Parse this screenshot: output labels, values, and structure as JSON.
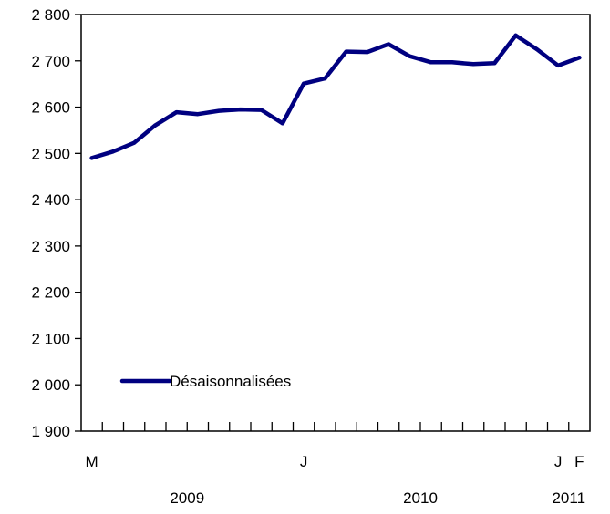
{
  "chart_data": {
    "type": "line",
    "title": "",
    "xlabel": "",
    "ylabel": "",
    "ylim": [
      1900,
      2800
    ],
    "yticks": [
      1900,
      2000,
      2100,
      2200,
      2300,
      2400,
      2500,
      2600,
      2700,
      2800
    ],
    "ytick_labels": [
      "1 900",
      "2 000",
      "2 100",
      "2 200",
      "2 300",
      "2 400",
      "2 500",
      "2 600",
      "2 700",
      "2 800"
    ],
    "x": [
      "2009-03",
      "2009-04",
      "2009-05",
      "2009-06",
      "2009-07",
      "2009-08",
      "2009-09",
      "2009-10",
      "2009-11",
      "2009-12",
      "2010-01",
      "2010-02",
      "2010-03",
      "2010-04",
      "2010-05",
      "2010-06",
      "2010-07",
      "2010-08",
      "2010-09",
      "2010-10",
      "2010-11",
      "2010-12",
      "2011-01",
      "2011-02"
    ],
    "month_labels": [
      {
        "month": "2009-03",
        "label": "M"
      },
      {
        "month": "2010-01",
        "label": "J"
      },
      {
        "month": "2011-01",
        "label": "J"
      },
      {
        "month": "2011-02",
        "label": "F"
      }
    ],
    "year_labels": [
      {
        "label": "2009",
        "span": [
          "2009-03",
          "2009-12"
        ]
      },
      {
        "label": "2010",
        "span": [
          "2010-01",
          "2010-12"
        ]
      },
      {
        "label": "2011",
        "span": [
          "2011-01",
          "2011-02"
        ]
      }
    ],
    "series": [
      {
        "name": "Désaisonnalisées",
        "color": "#000080",
        "values": [
          2490,
          2504,
          2523,
          2561,
          2589,
          2585,
          2592,
          2595,
          2594,
          2565,
          2651,
          2662,
          2720,
          2719,
          2736,
          2710,
          2697,
          2697,
          2693,
          2695,
          2755,
          2725,
          2690,
          2707
        ]
      }
    ],
    "legend_position": "bottom-left",
    "grid": false
  }
}
